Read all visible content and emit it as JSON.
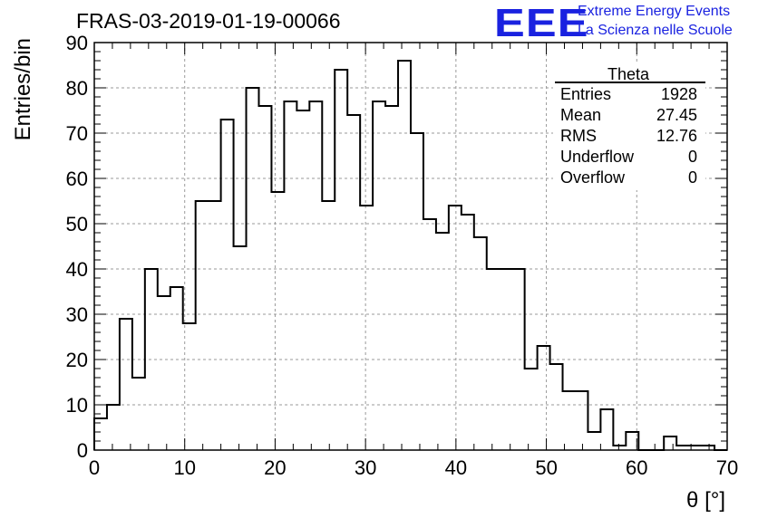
{
  "header": {
    "title": "FRAS-03-2019-01-19-00066",
    "logo_text": "EEE",
    "logo_line1": "Extreme Energy Events",
    "logo_line2": "La Scienza nelle Scuole"
  },
  "stats_box": {
    "title": "Theta",
    "rows": [
      {
        "label": "Entries",
        "value": "1928"
      },
      {
        "label": "Mean",
        "value": "27.45"
      },
      {
        "label": "RMS",
        "value": "12.76"
      },
      {
        "label": "Underflow",
        "value": "0"
      },
      {
        "label": "Overflow",
        "value": "0"
      }
    ]
  },
  "chart_data": {
    "type": "histogram",
    "xlabel": "θ [°]",
    "ylabel": "Entries/bin",
    "xlim": [
      0,
      70
    ],
    "ylim": [
      0,
      90
    ],
    "bin_width": 1.4,
    "bin_start": 0,
    "values": [
      7,
      10,
      29,
      16,
      40,
      34,
      36,
      28,
      55,
      55,
      73,
      45,
      80,
      76,
      57,
      77,
      75,
      77,
      55,
      84,
      74,
      54,
      77,
      76,
      86,
      70,
      51,
      48,
      54,
      52,
      47,
      40,
      40,
      40,
      18,
      23,
      19,
      13,
      13,
      4,
      9,
      1,
      4,
      0,
      0,
      3,
      1,
      1,
      1,
      0
    ],
    "xticks": [
      0,
      10,
      20,
      30,
      40,
      50,
      60,
      70
    ],
    "yticks": [
      0,
      10,
      20,
      30,
      40,
      50,
      60,
      70,
      80,
      90
    ],
    "grid": true,
    "line_color": "#000000",
    "logo_color": "#1a22e0"
  }
}
